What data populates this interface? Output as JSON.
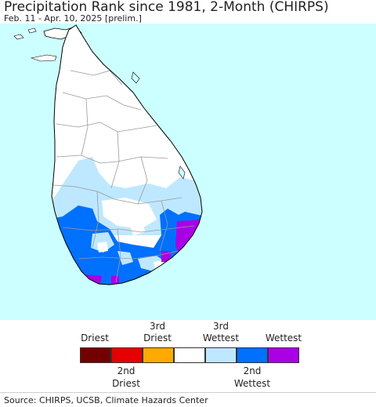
{
  "header": {
    "title": "Precipitation Rank since 1981, 2-Month (CHIRPS)",
    "subtitle": "Feb. 11 - Apr. 10, 2025 [prelim.]"
  },
  "legend": {
    "labels": {
      "driest": "Driest",
      "third_driest_1": "3rd",
      "third_driest_2": "Driest",
      "third_wettest_1": "3rd",
      "third_wettest_2": "Wettest",
      "wettest": "Wettest",
      "second_driest_1": "2nd",
      "second_driest_2": "Driest",
      "second_wettest_1": "2nd",
      "second_wettest_2": "Wettest"
    },
    "colors": [
      "#730000",
      "#e60000",
      "#ffaa00",
      "#ffffff",
      "#bee8ff",
      "#0070ff",
      "#aa00e6"
    ]
  },
  "map": {
    "ocean_color": "#ccffff",
    "land_color": "#ffffff"
  },
  "footer": {
    "source": "Source: CHIRPS, UCSB, Climate Hazards Center"
  }
}
